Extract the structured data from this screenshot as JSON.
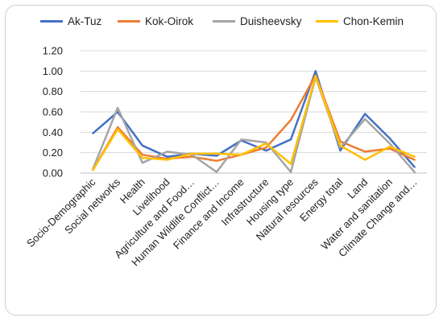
{
  "chart_data": {
    "type": "line",
    "title": "",
    "xlabel": "",
    "ylabel": "",
    "ylim": [
      0,
      1.2
    ],
    "yticks": [
      "0.00",
      "0.20",
      "0.40",
      "0.60",
      "0.80",
      "1.00",
      "1.20"
    ],
    "grid": "horizontal",
    "legend_position": "top",
    "categories": [
      "Socio-Demographic",
      "Social networks",
      "Health",
      "Livelihood",
      "Agriculture and Food…",
      "Human Wildlife Conflict…",
      "Finance and Income",
      "Infrastructure",
      "Housing type",
      "Natural resources",
      "Energy total",
      "Land",
      "Water and sanitation",
      "Climate Change and…"
    ],
    "series": [
      {
        "name": "Ak-Tuz",
        "color": "#4472C4",
        "values": [
          0.39,
          0.6,
          0.27,
          0.16,
          0.19,
          0.17,
          0.32,
          0.22,
          0.33,
          1.0,
          0.22,
          0.58,
          0.34,
          0.06
        ]
      },
      {
        "name": "Kok-Oirok",
        "color": "#ED7D31",
        "values": [
          0.03,
          0.45,
          0.18,
          0.14,
          0.16,
          0.12,
          0.18,
          0.25,
          0.52,
          0.96,
          0.31,
          0.21,
          0.24,
          0.13
        ]
      },
      {
        "name": "Duisheevsky",
        "color": "#A5A5A5",
        "values": [
          0.04,
          0.64,
          0.1,
          0.21,
          0.18,
          0.01,
          0.33,
          0.3,
          0.01,
          0.94,
          0.25,
          0.53,
          0.29,
          0.01
        ]
      },
      {
        "name": "Chon-Kemin",
        "color": "#FFC000",
        "values": [
          0.03,
          0.43,
          0.15,
          0.13,
          0.19,
          0.19,
          0.18,
          0.29,
          0.09,
          0.95,
          0.27,
          0.13,
          0.26,
          0.16
        ]
      }
    ]
  }
}
